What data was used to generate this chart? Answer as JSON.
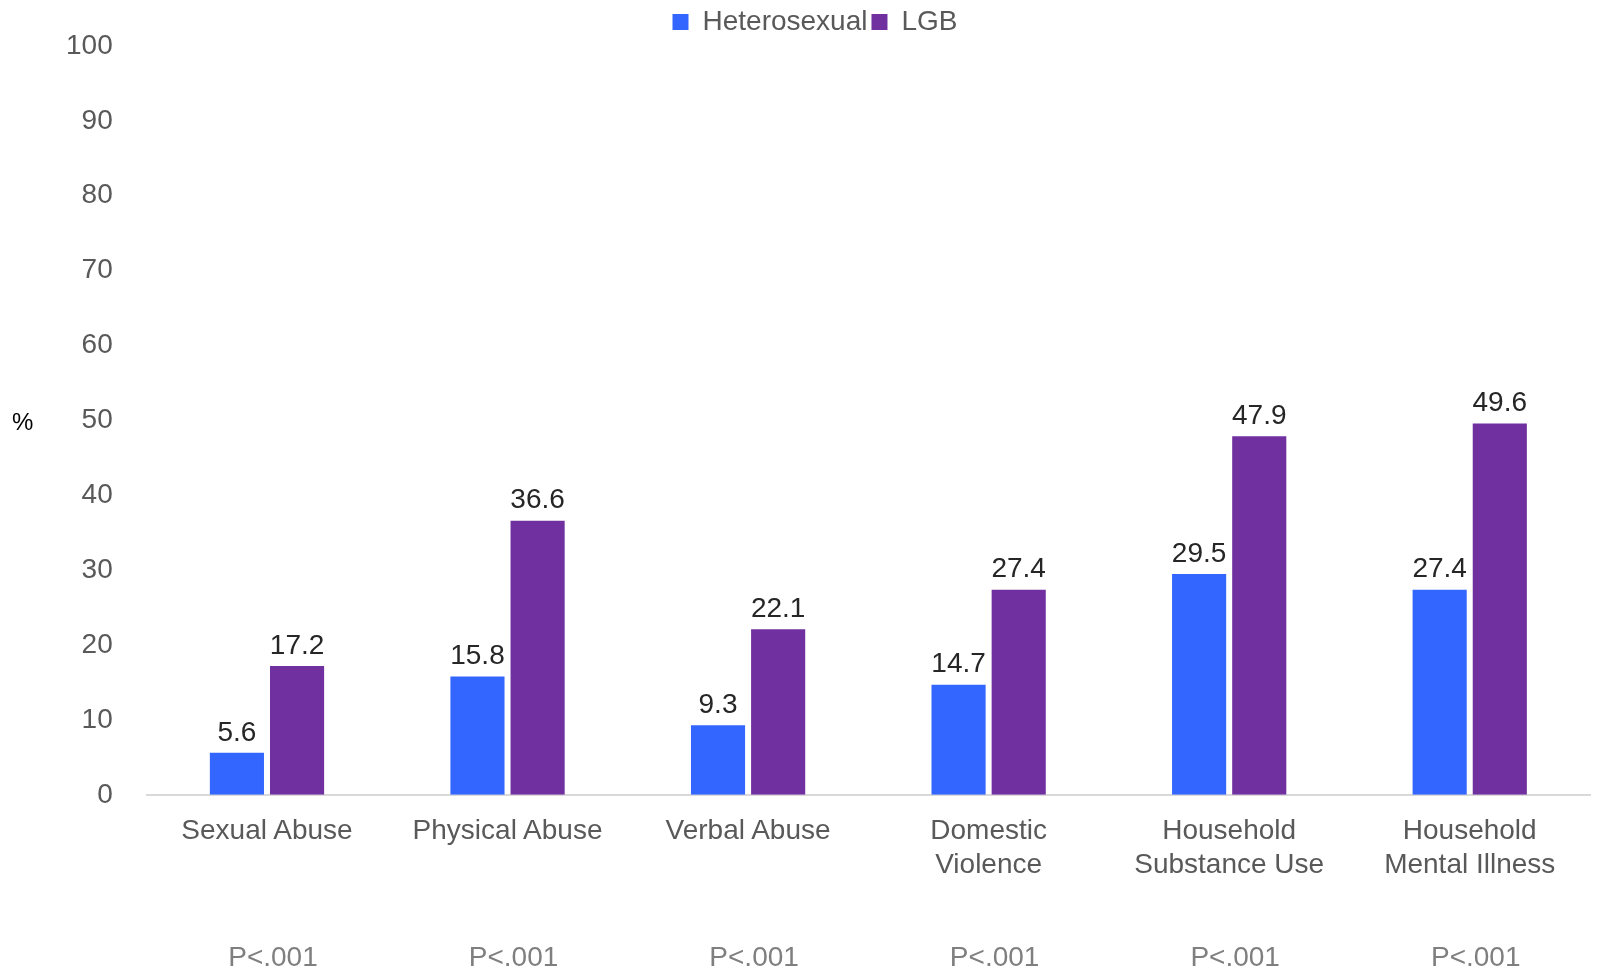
{
  "chart_data": {
    "type": "bar",
    "ylabel": "%",
    "categories": [
      "Sexual Abuse",
      "Physical Abuse",
      "Verbal Abuse",
      "Domestic Violence",
      "Household Substance Use",
      "Household Mental Illness"
    ],
    "series": [
      {
        "name": "Heterosexual",
        "color": "#3366ff",
        "values": [
          5.6,
          15.8,
          9.3,
          14.7,
          29.5,
          27.4
        ]
      },
      {
        "name": "LGB",
        "color": "#7030a0",
        "values": [
          17.2,
          36.6,
          22.1,
          27.4,
          47.9,
          49.6
        ]
      }
    ],
    "ylim": [
      0,
      100
    ],
    "yticks": [
      0,
      10,
      20,
      30,
      40,
      50,
      60,
      70,
      80,
      90,
      100
    ],
    "grid": false,
    "legend": "top",
    "data_labels": true,
    "annotations": [
      "P<.001",
      "P<.001",
      "P<.001",
      "P<.001",
      "P<.001",
      "P<.001"
    ]
  }
}
